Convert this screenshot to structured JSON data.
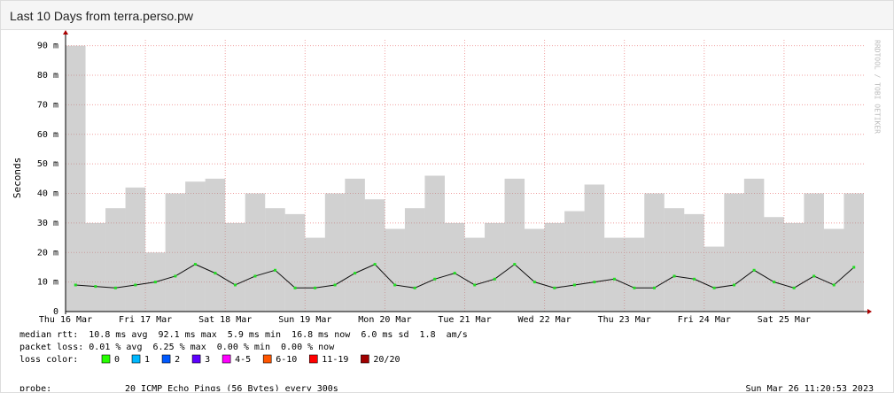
{
  "header": {
    "title": "Last 10 Days from terra.perso.pw"
  },
  "chart_data": {
    "type": "smokeping",
    "y_label": "Seconds",
    "watermark": "RRDTOOL / TOBI OETIKER",
    "xlim": [
      0,
      10
    ],
    "xticks": [
      {
        "value": 0,
        "label": "Thu 16 Mar"
      },
      {
        "value": 1,
        "label": "Fri 17 Mar"
      },
      {
        "value": 2,
        "label": "Sat 18 Mar"
      },
      {
        "value": 3,
        "label": "Sun 19 Mar"
      },
      {
        "value": 4,
        "label": "Mon 20 Mar"
      },
      {
        "value": 5,
        "label": "Tue 21 Mar"
      },
      {
        "value": 6,
        "label": "Wed 22 Mar"
      },
      {
        "value": 7,
        "label": "Thu 23 Mar"
      },
      {
        "value": 8,
        "label": "Fri 24 Mar"
      },
      {
        "value": 9,
        "label": "Sat 25 Mar"
      }
    ],
    "ylim": [
      0,
      0.092
    ],
    "yticks": [
      0,
      {
        "value": 0.01,
        "label": "10 m"
      },
      {
        "value": 0.02,
        "label": "20 m"
      },
      {
        "value": 0.03,
        "label": "30 m"
      },
      {
        "value": 0.04,
        "label": "40 m"
      },
      {
        "value": 0.05,
        "label": "50 m"
      },
      {
        "value": 0.06,
        "label": "60 m"
      },
      {
        "value": 0.07,
        "label": "70 m"
      },
      {
        "value": 0.08,
        "label": "80 m"
      },
      {
        "value": 0.09,
        "label": "90 m"
      }
    ],
    "grid": true,
    "x": [
      0,
      0.25,
      0.5,
      0.75,
      1,
      1.25,
      1.5,
      1.75,
      2,
      2.25,
      2.5,
      2.75,
      3,
      3.25,
      3.5,
      3.75,
      4,
      4.25,
      4.5,
      4.75,
      5,
      5.25,
      5.5,
      5.75,
      6,
      6.25,
      6.5,
      6.75,
      7,
      7.25,
      7.5,
      7.75,
      8,
      8.25,
      8.5,
      8.75,
      9,
      9.25,
      9.5,
      9.75
    ],
    "series": [
      {
        "color": "#9a9a9a",
        "values": [
          0.09,
          0.03,
          0.035,
          0.042,
          0.02,
          0.04,
          0.044,
          0.045,
          0.03,
          0.04,
          0.035,
          0.033,
          0.025,
          0.04,
          0.045,
          0.038,
          0.028,
          0.035,
          0.046,
          0.03,
          0.025,
          0.03,
          0.045,
          0.028,
          0.03,
          0.034,
          0.043,
          0.025,
          0.025,
          0.04,
          0.035,
          0.033,
          0.022,
          0.04,
          0.045,
          0.032,
          0.03,
          0.04,
          0.028,
          0.04
        ]
      },
      {
        "color": "#22dd22",
        "values": [
          0.009,
          0.0085,
          0.008,
          0.009,
          0.01,
          0.012,
          0.016,
          0.013,
          0.009,
          0.012,
          0.014,
          0.008,
          0.008,
          0.009,
          0.013,
          0.016,
          0.009,
          0.008,
          0.011,
          0.013,
          0.009,
          0.011,
          0.016,
          0.01,
          0.008,
          0.009,
          0.01,
          0.011,
          0.008,
          0.008,
          0.012,
          0.011,
          0.008,
          0.009,
          0.014,
          0.01,
          0.008,
          0.012,
          0.009,
          0.015
        ]
      }
    ],
    "stats": [
      "median rtt:  10.8 ms avg  92.1 ms max  5.9 ms min  16.8 ms now  6.0 ms sd  1.8  am/s",
      "packet loss: 0.01 % avg  6.25 % max  0.00 % min  0.00 % now"
    ],
    "loss_label": "loss color:",
    "loss_colors": [
      {
        "label": "0",
        "color": "#26ff00"
      },
      {
        "label": "1",
        "color": "#00b8ff"
      },
      {
        "label": "2",
        "color": "#0059ff"
      },
      {
        "label": "3",
        "color": "#5e00ff"
      },
      {
        "label": "4-5",
        "color": "#ff00ff"
      },
      {
        "label": "6-10",
        "color": "#ff5500"
      },
      {
        "label": "11-19",
        "color": "#ff0000"
      },
      {
        "label": "20/20",
        "color": "#a10000"
      }
    ],
    "probe_label": "probe:",
    "probe": "20 ICMP Echo Pings (56 Bytes) every 300s",
    "timestamp": "Sun Mar 26 11:20:53 2023"
  }
}
